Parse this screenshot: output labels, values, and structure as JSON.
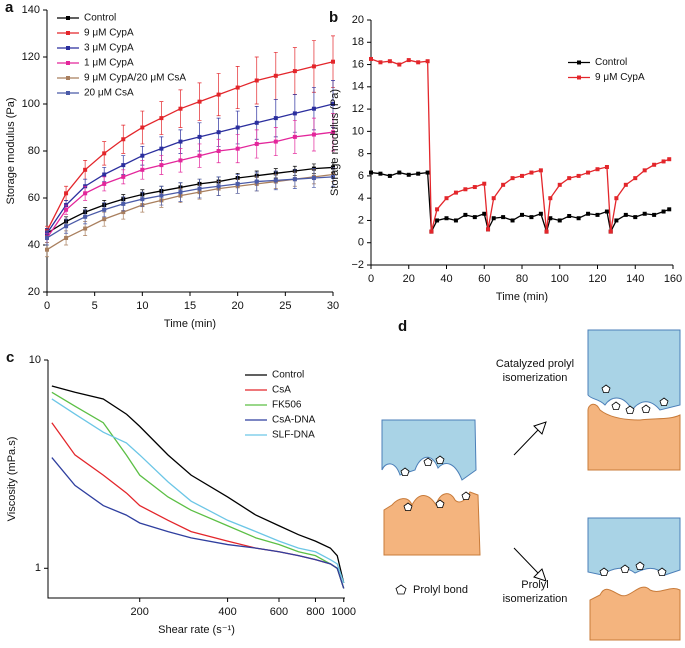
{
  "chart_data": [
    {
      "type": "line",
      "label": "a",
      "xlabel": "Time (min)",
      "ylabel": "Storage modulus (Pa)",
      "x": [
        0,
        2,
        4,
        6,
        8,
        10,
        12,
        14,
        16,
        18,
        20,
        22,
        24,
        26,
        28,
        30
      ],
      "xlim": [
        0,
        30
      ],
      "xticks": [
        0,
        5,
        10,
        15,
        20,
        25,
        30
      ],
      "ylim": [
        20,
        140
      ],
      "yticks": [
        20,
        40,
        60,
        80,
        100,
        120,
        140
      ],
      "legend": "upper left",
      "series": [
        {
          "name": "Control",
          "color": "#000000",
          "values": [
            45,
            50,
            54,
            57,
            59.5,
            61.5,
            63,
            64.5,
            66,
            67,
            68.5,
            69.5,
            70.5,
            71.5,
            72.5,
            73
          ],
          "errors": [
            2,
            2,
            2,
            2,
            2,
            2,
            2,
            2,
            2,
            2,
            2,
            2,
            2,
            2,
            2,
            2
          ]
        },
        {
          "name": "9 μM CypA",
          "color": "#e3262b",
          "values": [
            46,
            62,
            72,
            79,
            85,
            90,
            94,
            98,
            101,
            104,
            107,
            110,
            112,
            114,
            116,
            118
          ],
          "errors": [
            2,
            3,
            4,
            5,
            6,
            7,
            7,
            8,
            8,
            9,
            9,
            10,
            10,
            10,
            11,
            11
          ]
        },
        {
          "name": "3 μM CypA",
          "color": "#2b2f9e",
          "values": [
            45,
            57,
            65,
            70,
            74,
            78,
            81,
            84,
            86,
            88,
            90,
            92,
            94,
            96,
            98,
            100
          ],
          "errors": [
            2,
            2,
            3,
            3,
            4,
            4,
            5,
            5,
            6,
            6,
            7,
            7,
            8,
            8,
            9,
            10
          ]
        },
        {
          "name": "1 μM CypA",
          "color": "#e3269b",
          "values": [
            43,
            55,
            62,
            66,
            69,
            72,
            74,
            76,
            78,
            80,
            81,
            83,
            84,
            86,
            87,
            88
          ],
          "errors": [
            2,
            2,
            3,
            3,
            3,
            4,
            4,
            5,
            5,
            5,
            6,
            6,
            6,
            7,
            7,
            8
          ]
        },
        {
          "name": "9 μM CypA/20 μM CsA",
          "color": "#a97f5e",
          "values": [
            38,
            43,
            47,
            51,
            54,
            57,
            59,
            61,
            62.5,
            64,
            65,
            66,
            67,
            68,
            69,
            70
          ],
          "errors": [
            3,
            3,
            3,
            3,
            3,
            3,
            3,
            3,
            3,
            3,
            3,
            3,
            3,
            3,
            3,
            3
          ]
        },
        {
          "name": "20 μM CsA",
          "color": "#4b5ba8",
          "values": [
            43,
            48,
            52,
            55,
            57.5,
            59.5,
            61,
            62.5,
            64,
            65,
            66,
            67,
            67.5,
            68,
            68.5,
            69
          ],
          "errors": [
            3,
            3,
            3,
            3,
            3,
            3,
            4,
            4,
            4,
            4,
            4,
            4,
            4,
            4,
            4,
            4
          ]
        }
      ]
    },
    {
      "type": "line",
      "label": "b",
      "xlabel": "Time (min)",
      "ylabel": "Storage modulus (Pa)",
      "x": [
        0,
        5,
        10,
        15,
        20,
        25,
        30,
        32,
        35,
        40,
        45,
        50,
        55,
        60,
        62,
        65,
        70,
        75,
        80,
        85,
        90,
        93,
        95,
        100,
        105,
        110,
        115,
        120,
        125,
        127,
        130,
        135,
        140,
        145,
        150,
        155,
        158
      ],
      "xlim": [
        0,
        160
      ],
      "xticks": [
        0,
        20,
        40,
        60,
        80,
        100,
        120,
        140,
        160
      ],
      "ylim": [
        -2,
        20
      ],
      "yticks": [
        {
          "value": -2,
          "label": "−2"
        },
        0,
        2,
        4,
        6,
        8,
        10,
        12,
        14,
        16,
        18,
        20
      ],
      "legend": "right",
      "series": [
        {
          "name": "Control",
          "color": "#000000",
          "values": [
            6.3,
            6.2,
            6.0,
            6.3,
            6.1,
            6.2,
            6.3,
            1.0,
            2.0,
            2.2,
            2.0,
            2.5,
            2.3,
            2.6,
            1.2,
            2.2,
            2.3,
            2.0,
            2.5,
            2.3,
            2.6,
            1.0,
            2.2,
            2.0,
            2.4,
            2.2,
            2.6,
            2.5,
            2.8,
            1.0,
            2.0,
            2.5,
            2.3,
            2.6,
            2.5,
            2.8,
            3.0
          ]
        },
        {
          "name": "9 μM CypA",
          "color": "#e3262b",
          "values": [
            16.5,
            16.2,
            16.3,
            16.0,
            16.4,
            16.2,
            16.3,
            1.0,
            3.0,
            4.0,
            4.5,
            4.8,
            5.0,
            5.3,
            1.2,
            4.0,
            5.2,
            5.8,
            6.0,
            6.3,
            6.5,
            1.0,
            4.0,
            5.2,
            5.8,
            6.0,
            6.3,
            6.6,
            6.8,
            1.0,
            4.0,
            5.2,
            5.8,
            6.5,
            7.0,
            7.3,
            7.5
          ]
        }
      ]
    },
    {
      "type": "line",
      "label": "c",
      "xlabel": "Shear rate (s⁻¹)",
      "ylabel": "Viscosity (mPa.s)",
      "xscale": "log",
      "yscale": "log",
      "x": [
        100,
        120,
        150,
        180,
        200,
        250,
        300,
        400,
        500,
        600,
        700,
        800,
        900,
        950,
        1000
      ],
      "xlim": [
        97,
        1010
      ],
      "xticks": [
        200,
        400,
        600,
        800,
        1000
      ],
      "ylim": [
        0.72,
        10
      ],
      "yticks": [
        1,
        10
      ],
      "legend": "upper right",
      "series": [
        {
          "name": "Control",
          "color": "#000000",
          "values": [
            7.5,
            7.0,
            6.5,
            5.5,
            4.8,
            3.5,
            2.8,
            2.2,
            1.8,
            1.6,
            1.45,
            1.35,
            1.25,
            1.15,
            0.85
          ]
        },
        {
          "name": "CsA",
          "color": "#e3262b",
          "values": [
            5.0,
            3.5,
            2.8,
            2.3,
            2.0,
            1.7,
            1.5,
            1.35,
            1.25,
            1.2,
            1.15,
            1.1,
            1.05,
            1.0,
            0.8
          ]
        },
        {
          "name": "FK506",
          "color": "#5cbf45",
          "values": [
            7.0,
            6.0,
            5.0,
            3.5,
            2.8,
            2.2,
            1.9,
            1.6,
            1.4,
            1.3,
            1.2,
            1.15,
            1.05,
            1.0,
            0.8
          ]
        },
        {
          "name": "CsA-DNA",
          "color": "#2f3f9f",
          "values": [
            3.4,
            2.5,
            2.0,
            1.8,
            1.65,
            1.5,
            1.4,
            1.3,
            1.25,
            1.2,
            1.15,
            1.1,
            1.05,
            1.0,
            0.8
          ]
        },
        {
          "name": "SLF-DNA",
          "color": "#6cc6e6",
          "values": [
            6.5,
            5.5,
            4.5,
            4.0,
            3.5,
            2.6,
            2.1,
            1.7,
            1.5,
            1.35,
            1.25,
            1.2,
            1.1,
            1.05,
            0.85
          ]
        }
      ]
    }
  ],
  "diagram": {
    "label": "d",
    "top_arrow": "Catalyzed prolyl isomerization",
    "bottom_arrow": "Prolyl isomerization",
    "key": "Prolyl bond"
  }
}
